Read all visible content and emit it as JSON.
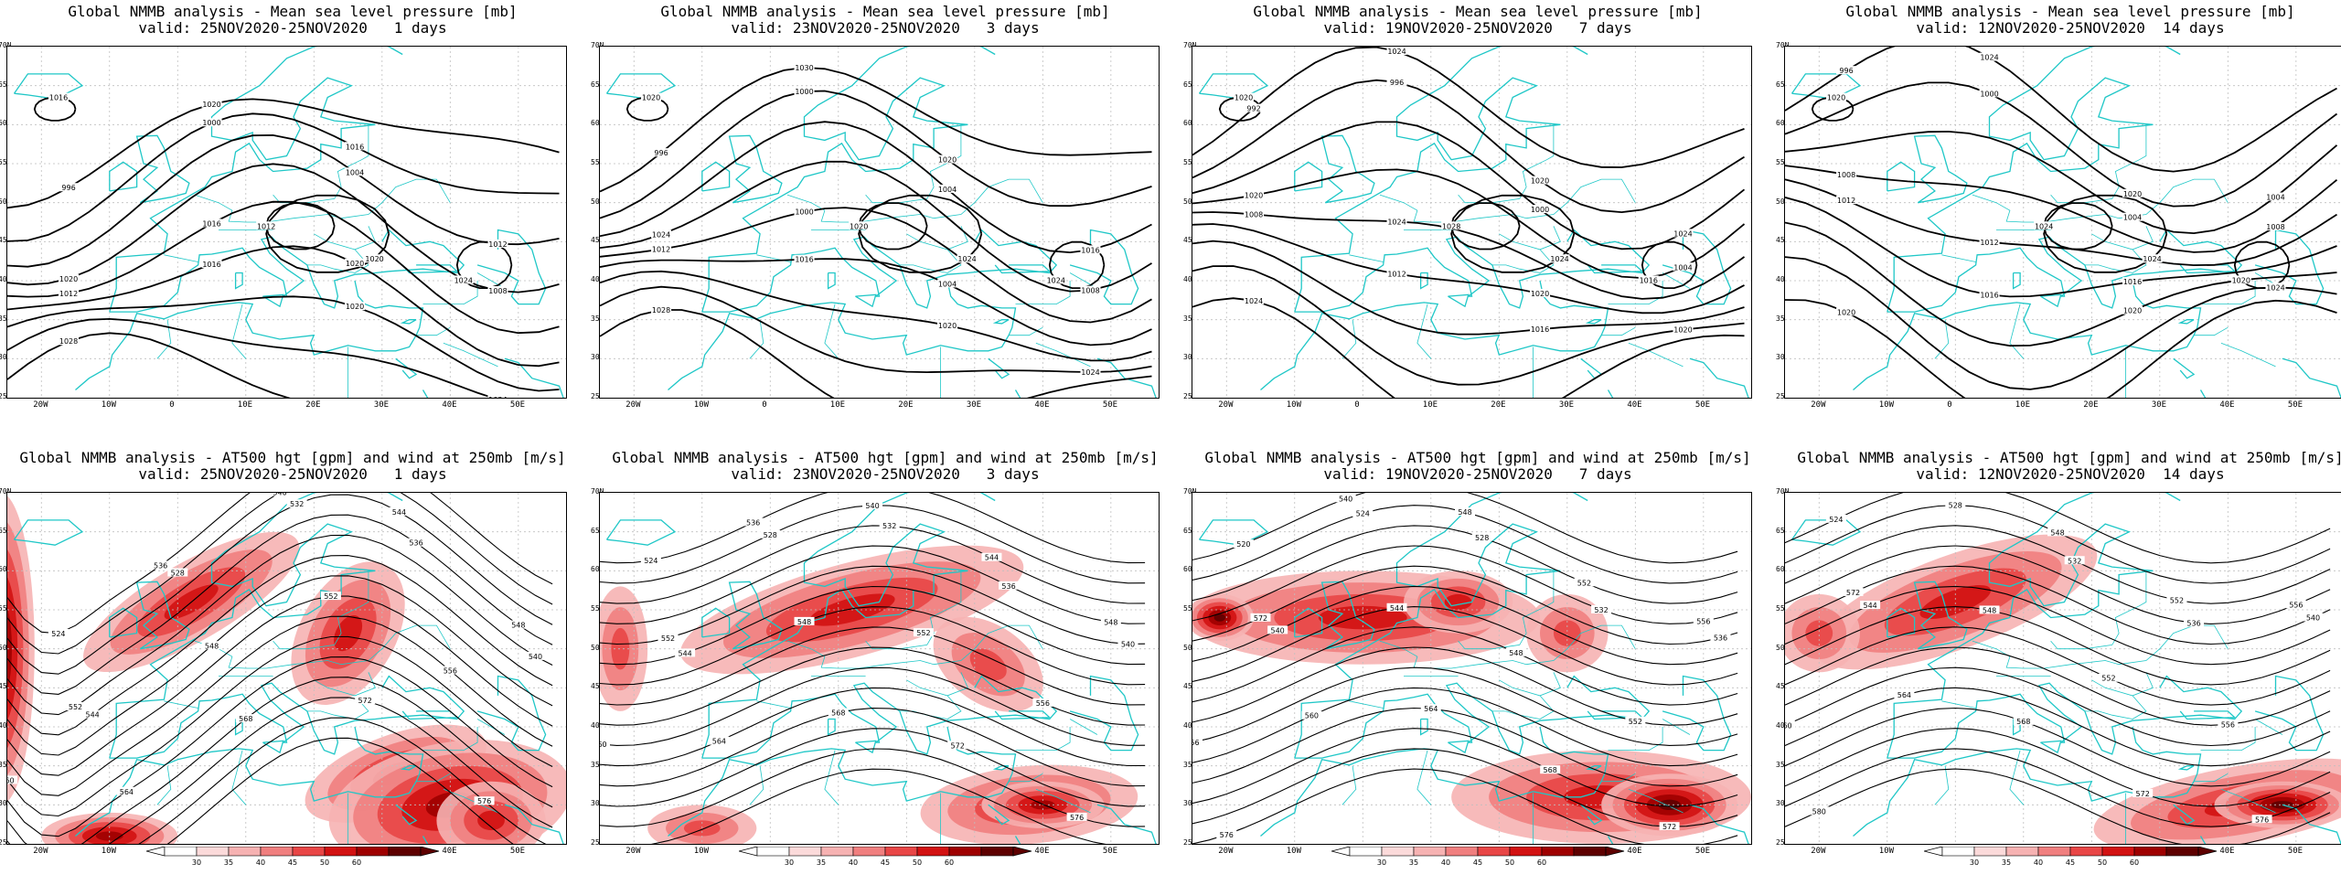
{
  "panels": [
    {
      "title": "Global NMMB analysis - Mean sea level pressure [mb]",
      "valid": "valid: 25NOV2020-25NOV2020   1 days",
      "kind": "mslp",
      "labels": [
        "996",
        "1000",
        "1004",
        "1008",
        "1012",
        "1016",
        "1020",
        "1024",
        "1028",
        "1012",
        "1020",
        "1016",
        "1024",
        "1020",
        "1016",
        "1012",
        "1020",
        "1016",
        "1020"
      ]
    },
    {
      "title": "Global NMMB analysis - Mean sea level pressure [mb]",
      "valid": "valid: 23NOV2020-25NOV2020   3 days",
      "kind": "mslp",
      "labels": [
        "996",
        "1000",
        "1004",
        "1008",
        "1012",
        "1016",
        "1020",
        "1024",
        "1028",
        "1020",
        "1024",
        "1020",
        "1024",
        "1030",
        "1020",
        "1016",
        "1024",
        "1000",
        "1004"
      ]
    },
    {
      "title": "Global NMMB analysis - Mean sea level pressure [mb]",
      "valid": "valid: 19NOV2020-25NOV2020   7 days",
      "kind": "mslp",
      "labels": [
        "992",
        "996",
        "1000",
        "1004",
        "1008",
        "1012",
        "1016",
        "1020",
        "1024",
        "1028",
        "1024",
        "1020",
        "1016",
        "1024",
        "1020",
        "1024",
        "1020",
        "1024",
        "1020"
      ]
    },
    {
      "title": "Global NMMB analysis - Mean sea level pressure [mb]",
      "valid": "valid: 12NOV2020-25NOV2020  14 days",
      "kind": "mslp",
      "labels": [
        "996",
        "1000",
        "1004",
        "1008",
        "1012",
        "1016",
        "1020",
        "1024",
        "1020",
        "1024",
        "1024",
        "1020",
        "1020",
        "1024",
        "1020",
        "1004",
        "1008",
        "1012",
        "1016"
      ]
    },
    {
      "title": "Global NMMB analysis - AT500 hgt [gpm] and wind at 250mb [m/s]",
      "valid": "valid: 25NOV2020-25NOV2020   1 days",
      "kind": "z500",
      "labels": [
        "524",
        "528",
        "532",
        "536",
        "540",
        "544",
        "548",
        "552",
        "556",
        "560",
        "564",
        "568",
        "572",
        "576",
        "532",
        "536",
        "540",
        "544",
        "548",
        "552"
      ]
    },
    {
      "title": "Global NMMB analysis - AT500 hgt [gpm] and wind at 250mb [m/s]",
      "valid": "valid: 23NOV2020-25NOV2020   3 days",
      "kind": "z500",
      "labels": [
        "524",
        "528",
        "532",
        "536",
        "540",
        "544",
        "548",
        "552",
        "556",
        "560",
        "564",
        "568",
        "572",
        "576",
        "532",
        "536",
        "540",
        "544",
        "548",
        "552"
      ]
    },
    {
      "title": "Global NMMB analysis - AT500 hgt [gpm] and wind at 250mb [m/s]",
      "valid": "valid: 19NOV2020-25NOV2020   7 days",
      "kind": "z500",
      "labels": [
        "520",
        "524",
        "528",
        "532",
        "536",
        "540",
        "544",
        "548",
        "552",
        "556",
        "560",
        "564",
        "568",
        "572",
        "576",
        "540",
        "548",
        "552",
        "556",
        "572"
      ]
    },
    {
      "title": "Global NMMB analysis - AT500 hgt [gpm] and wind at 250mb [m/s]",
      "valid": "valid: 12NOV2020-25NOV2020  14 days",
      "kind": "z500",
      "labels": [
        "524",
        "528",
        "532",
        "536",
        "540",
        "544",
        "548",
        "552",
        "556",
        "560",
        "564",
        "568",
        "572",
        "576",
        "580",
        "540",
        "548",
        "552",
        "556",
        "572"
      ]
    }
  ],
  "lon_ticks": [
    "20W",
    "10W",
    "0",
    "10E",
    "20E",
    "30E",
    "40E",
    "50E"
  ],
  "lat_ticks": [
    "70N",
    "65N",
    "60N",
    "55N",
    "50N",
    "45N",
    "40N",
    "35N",
    "30N",
    "25N"
  ],
  "colorbar": {
    "ticks": [
      "30",
      "35",
      "40",
      "45",
      "50",
      "60"
    ],
    "colors": [
      "#ffffff",
      "#fbdada",
      "#f6b2b2",
      "#f07f7f",
      "#e84646",
      "#d21212",
      "#9e0000",
      "#5e0000"
    ]
  },
  "colors": {
    "coast": "#1fc7c7",
    "contour": "#000000",
    "grid": "#bfbfbf"
  }
}
